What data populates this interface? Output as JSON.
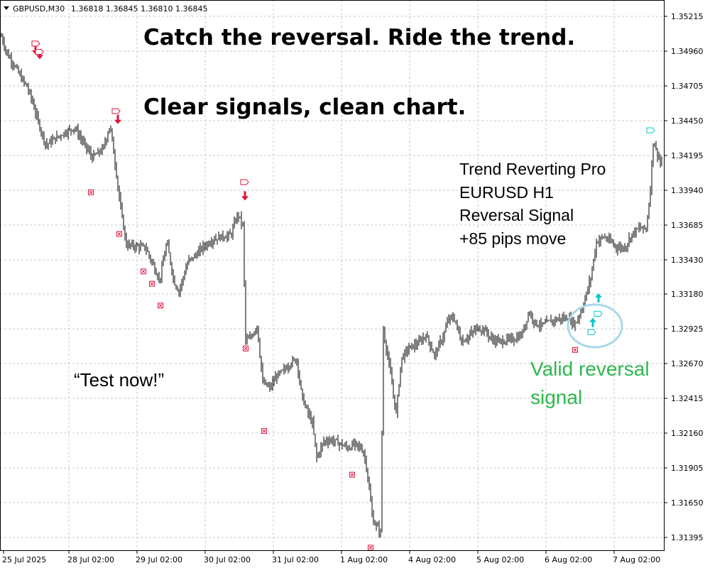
{
  "header": {
    "symbol": "GBPUSD,M30",
    "ohlc": "1.36818 1.36845 1.36810 1.36845"
  },
  "headlines": [
    "Catch the reversal. Ride the trend.",
    "Clear signals, clean chart."
  ],
  "info_lines": [
    "Trend Reverting Pro",
    "EURUSD H1",
    "Reversal Signal",
    "+85 pips move"
  ],
  "cta": "“Test now!”",
  "valid_signal": [
    "Valid reversal",
    "signal"
  ],
  "colors": {
    "bear_arrow": "#dc143c",
    "bull_arrow": "#00c8c8",
    "bar": "#000000",
    "grid": "#c8c8c8",
    "green_text": "#2db84d",
    "highlight": "#a8d8ea"
  },
  "chart_data": {
    "type": "ohlc-bar",
    "timeframe": "M30",
    "x_tick_labels": [
      "25 Jul 2025",
      "28 Jul 02:00",
      "29 Jul 02:00",
      "30 Jul 02:00",
      "31 Jul 02:00",
      "1 Aug 02:00",
      "4 Aug 02:00",
      "5 Aug 02:00",
      "6 Aug 02:00",
      "7 Aug 02:00"
    ],
    "y_tick_labels": [
      "1.35215",
      "1.34960",
      "1.34705",
      "1.34450",
      "1.34195",
      "1.33940",
      "1.33685",
      "1.33430",
      "1.33180",
      "1.32925",
      "1.32670",
      "1.32415",
      "1.32160",
      "1.31905",
      "1.31650",
      "1.31395"
    ],
    "ylim": [
      1.3128,
      1.3531
    ],
    "grid": true,
    "closes": [
      [
        0,
        1.351
      ],
      [
        10,
        1.3494
      ],
      [
        20,
        1.3486
      ],
      [
        30,
        1.3476
      ],
      [
        38,
        1.347
      ],
      [
        45,
        1.346
      ],
      [
        55,
        1.3442
      ],
      [
        65,
        1.3427
      ],
      [
        75,
        1.3431
      ],
      [
        90,
        1.3436
      ],
      [
        105,
        1.344
      ],
      [
        115,
        1.3431
      ],
      [
        130,
        1.3418
      ],
      [
        145,
        1.3424
      ],
      [
        155,
        1.3442
      ],
      [
        163,
        1.341
      ],
      [
        170,
        1.338
      ],
      [
        178,
        1.3354
      ],
      [
        190,
        1.3353
      ],
      [
        205,
        1.3352
      ],
      [
        215,
        1.334
      ],
      [
        225,
        1.3328
      ],
      [
        235,
        1.3356
      ],
      [
        245,
        1.3327
      ],
      [
        252,
        1.332
      ],
      [
        265,
        1.3342
      ],
      [
        275,
        1.3346
      ],
      [
        285,
        1.3352
      ],
      [
        300,
        1.3358
      ],
      [
        312,
        1.336
      ],
      [
        325,
        1.3361
      ],
      [
        335,
        1.3377
      ],
      [
        342,
        1.3368
      ],
      [
        346,
        1.3284
      ],
      [
        352,
        1.3285
      ],
      [
        362,
        1.3295
      ],
      [
        370,
        1.3253
      ],
      [
        380,
        1.3249
      ],
      [
        390,
        1.3258
      ],
      [
        400,
        1.3262
      ],
      [
        410,
        1.3268
      ],
      [
        418,
        1.327
      ],
      [
        425,
        1.3243
      ],
      [
        432,
        1.3233
      ],
      [
        440,
        1.3223
      ],
      [
        446,
        1.3198
      ],
      [
        456,
        1.321
      ],
      [
        466,
        1.3211
      ],
      [
        476,
        1.3209
      ],
      [
        490,
        1.3205
      ],
      [
        500,
        1.3208
      ],
      [
        510,
        1.3204
      ],
      [
        515,
        1.3196
      ],
      [
        521,
        1.317
      ],
      [
        525,
        1.3152
      ],
      [
        530,
        1.3148
      ],
      [
        536,
        1.3143
      ],
      [
        540,
        1.3291
      ],
      [
        548,
        1.3266
      ],
      [
        558,
        1.323
      ],
      [
        565,
        1.327
      ],
      [
        575,
        1.3278
      ],
      [
        590,
        1.3282
      ],
      [
        600,
        1.3288
      ],
      [
        612,
        1.3273
      ],
      [
        625,
        1.3288
      ],
      [
        632,
        1.33
      ],
      [
        640,
        1.33
      ],
      [
        650,
        1.3283
      ],
      [
        660,
        1.3287
      ],
      [
        672,
        1.3293
      ],
      [
        682,
        1.3292
      ],
      [
        692,
        1.3285
      ],
      [
        705,
        1.3283
      ],
      [
        712,
        1.3284
      ],
      [
        725,
        1.3285
      ],
      [
        735,
        1.3288
      ],
      [
        745,
        1.3305
      ],
      [
        755,
        1.3296
      ],
      [
        765,
        1.3295
      ],
      [
        775,
        1.3298
      ],
      [
        790,
        1.33
      ],
      [
        800,
        1.33
      ],
      [
        810,
        1.3296
      ],
      [
        818,
        1.3305
      ],
      [
        825,
        1.3316
      ],
      [
        832,
        1.333
      ],
      [
        840,
        1.3356
      ],
      [
        850,
        1.336
      ],
      [
        860,
        1.3356
      ],
      [
        870,
        1.3352
      ],
      [
        880,
        1.3352
      ],
      [
        890,
        1.3362
      ],
      [
        900,
        1.3366
      ],
      [
        910,
        1.3366
      ],
      [
        915,
        1.3388
      ],
      [
        920,
        1.343
      ],
      [
        925,
        1.3422
      ],
      [
        930,
        1.3415
      ],
      [
        933,
        1.3411
      ]
    ],
    "bear_arrows": [
      [
        50,
        1.34935
      ],
      [
        56,
        1.349
      ],
      [
        166,
        1.34425
      ],
      [
        345,
        1.33865
      ]
    ],
    "bull_arrows": [
      [
        843,
        1.33185
      ],
      [
        835,
        1.33005
      ]
    ],
    "label_tags": [
      [
        50,
        1.35015
      ],
      [
        55,
        1.34955
      ],
      [
        163,
        1.3452
      ],
      [
        344,
        1.34
      ],
      [
        842,
        1.33035
      ],
      [
        833,
        1.329
      ],
      [
        916,
        1.3438
      ]
    ],
    "stop_markers": [
      [
        128,
        1.33925
      ],
      [
        168,
        1.3362
      ],
      [
        202,
        1.33345
      ],
      [
        214,
        1.33255
      ],
      [
        226,
        1.33095
      ],
      [
        346,
        1.3278
      ],
      [
        372,
        1.32175
      ],
      [
        496,
        1.31855
      ],
      [
        522,
        1.3132
      ],
      [
        810,
        1.3277
      ]
    ]
  }
}
